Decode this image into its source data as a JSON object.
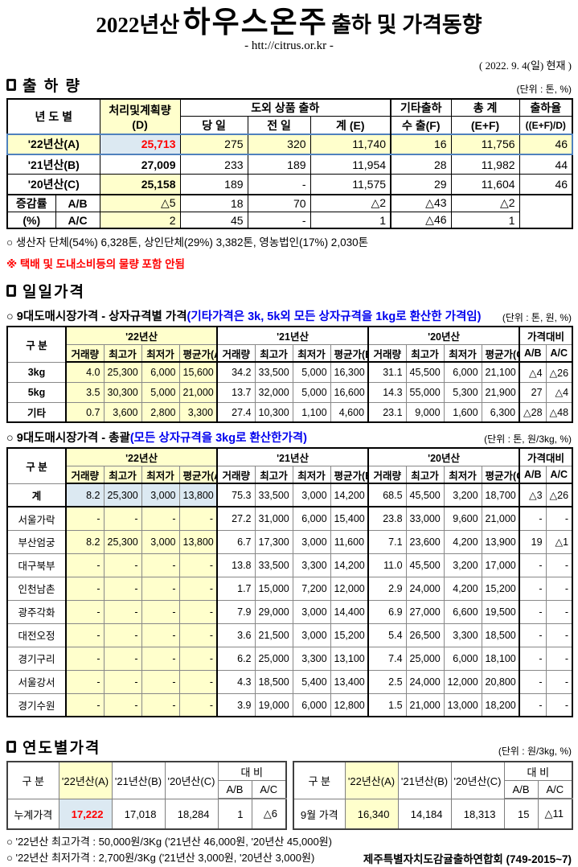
{
  "colors": {
    "yellow": "#FFFFCC",
    "light_blue": "#DCE9F2",
    "red": "#FF0000",
    "blue_text": "#0000EE",
    "row22_border": "#4F81BD"
  },
  "header": {
    "title_prefix": "2022년산",
    "title_main": "하우스온주",
    "title_suffix": "출하 및 가격동향",
    "url": "- htt://citrus.or.kr -",
    "as_of": "( 2022. 9. 4(일) 현재 )"
  },
  "shipment": {
    "title": "출 하 량",
    "unit": "(단위 : 톤, %)",
    "col_year": "년 도 별",
    "col_plan_line1": "처리및계획량",
    "col_plan_line2": "(D)",
    "col_group_shipment": "도외 상품 출하",
    "col_day": "당 일",
    "col_prev": "전 일",
    "col_total_e": "계 (E)",
    "col_etc_line1": "기타출하",
    "col_etc_line2": "수 출(F)",
    "col_sum_line1": "총  계",
    "col_sum_line2": "(E+F)",
    "col_rate_line1": "출하율",
    "col_rate_line2": "((E+F)/D)",
    "rows": [
      {
        "label": "'22년산(A)",
        "cells": [
          "25,713",
          "275",
          "320",
          "11,740",
          "16",
          "11,756",
          "46"
        ]
      },
      {
        "label": "'21년산(B)",
        "cells": [
          "27,009",
          "233",
          "189",
          "11,954",
          "28",
          "11,982",
          "44"
        ]
      },
      {
        "label": "'20년산(C)",
        "cells": [
          "25,158",
          "189",
          "-",
          "11,575",
          "29",
          "11,604",
          "46"
        ]
      }
    ],
    "change_rows": [
      {
        "group": "증감률",
        "label": "A/B",
        "cells": [
          "△5",
          "18",
          "70",
          "△2",
          "△43",
          "△2"
        ]
      },
      {
        "group": "(%)",
        "label": "A/C",
        "cells": [
          "2",
          "45",
          "-",
          "1",
          "△46",
          "1"
        ]
      }
    ],
    "note1": "생산자 단체(54%)  6,328톤,    상인단체(29%)  3,382톤,   영농법인(17%)   2,030톤",
    "note2": "※ 택배 및 도내소비등의 물량 포함 안됨"
  },
  "daily": {
    "title": "일일가격",
    "sub1_label": "9대도매시장가격 - 상자규격별 가격",
    "sub1_note": "(기타가격은 3k, 5k외 모든 상자규격을 1kg로 환산한 가격임)",
    "sub1_unit": "(단위 : 톤,  원, %)",
    "sub2_label": "9대도매시장가격 - 총괄",
    "sub2_note": "(모든 상자규격을 3kg로 환산한가격)",
    "sub2_unit": "(단위 : 톤, 원/3kg, %)",
    "headers": {
      "gubun": "구  분",
      "y22": "'22년산",
      "y21": "'21년산",
      "y20": "'20년산",
      "compare": "가격대비",
      "sub": [
        "거래량",
        "최고가",
        "최저가",
        "평균가(A)",
        "거래량",
        "최고가",
        "최저가",
        "평균가(B)",
        "거래량",
        "최고가",
        "최저가",
        "평균가(C)",
        "A/B",
        "A/C"
      ]
    },
    "by_size_rows": [
      {
        "label": "3kg",
        "cells": [
          "4.0",
          "25,300",
          "6,000",
          "15,600",
          "34.2",
          "33,500",
          "5,000",
          "16,300",
          "31.1",
          "45,500",
          "6,000",
          "21,100",
          "△4",
          "△26"
        ]
      },
      {
        "label": "5kg",
        "cells": [
          "3.5",
          "30,300",
          "5,000",
          "21,000",
          "13.7",
          "32,000",
          "5,000",
          "16,600",
          "14.3",
          "55,000",
          "5,300",
          "21,900",
          "27",
          "△4"
        ]
      },
      {
        "label": "기타",
        "cells": [
          "0.7",
          "3,600",
          "2,800",
          "3,300",
          "27.4",
          "10,300",
          "1,100",
          "4,600",
          "23.1",
          "9,000",
          "1,600",
          "6,300",
          "△28",
          "△48"
        ]
      }
    ],
    "overall_rows": [
      {
        "label": "계",
        "highlight": "blue",
        "cells": [
          "8.2",
          "25,300",
          "3,000",
          "13,800",
          "75.3",
          "33,500",
          "3,000",
          "14,200",
          "68.5",
          "45,500",
          "3,200",
          "18,700",
          "△3",
          "△26"
        ]
      },
      {
        "label": "서울가락",
        "highlight": "yellow",
        "cells": [
          "-",
          "-",
          "-",
          "-",
          "27.2",
          "31,000",
          "6,000",
          "15,400",
          "23.8",
          "33,000",
          "9,600",
          "21,000",
          "-",
          "-"
        ]
      },
      {
        "label": "부산엄궁",
        "highlight": "yellow",
        "cells": [
          "8.2",
          "25,300",
          "3,000",
          "13,800",
          "6.7",
          "17,300",
          "3,000",
          "11,600",
          "7.1",
          "23,600",
          "4,200",
          "13,900",
          "19",
          "△1"
        ]
      },
      {
        "label": "대구북부",
        "highlight": "yellow",
        "cells": [
          "-",
          "-",
          "-",
          "-",
          "13.8",
          "33,500",
          "3,300",
          "14,200",
          "11.0",
          "45,500",
          "3,200",
          "17,000",
          "-",
          "-"
        ]
      },
      {
        "label": "인천남촌",
        "highlight": "yellow",
        "cells": [
          "-",
          "-",
          "-",
          "-",
          "1.7",
          "15,000",
          "7,200",
          "12,000",
          "2.9",
          "24,000",
          "4,200",
          "15,200",
          "-",
          "-"
        ]
      },
      {
        "label": "광주각화",
        "highlight": "yellow",
        "cells": [
          "-",
          "-",
          "-",
          "-",
          "7.9",
          "29,000",
          "3,000",
          "14,400",
          "6.9",
          "27,000",
          "6,600",
          "19,500",
          "-",
          "-"
        ]
      },
      {
        "label": "대전오정",
        "highlight": "yellow",
        "cells": [
          "-",
          "-",
          "-",
          "-",
          "3.6",
          "21,500",
          "3,000",
          "15,200",
          "5.4",
          "26,500",
          "3,300",
          "18,500",
          "-",
          "-"
        ]
      },
      {
        "label": "경기구리",
        "highlight": "yellow",
        "cells": [
          "-",
          "-",
          "-",
          "-",
          "6.2",
          "25,000",
          "3,300",
          "13,100",
          "7.4",
          "25,000",
          "6,000",
          "18,100",
          "-",
          "-"
        ]
      },
      {
        "label": "서울강서",
        "highlight": "yellow",
        "cells": [
          "-",
          "-",
          "-",
          "-",
          "4.3",
          "18,500",
          "5,400",
          "13,400",
          "2.5",
          "24,000",
          "12,000",
          "20,800",
          "-",
          "-"
        ]
      },
      {
        "label": "경기수원",
        "highlight": "yellow",
        "cells": [
          "-",
          "-",
          "-",
          "-",
          "3.9",
          "19,000",
          "6,000",
          "12,800",
          "1.5",
          "21,000",
          "13,000",
          "18,200",
          "-",
          "-"
        ]
      }
    ]
  },
  "yearly": {
    "title": "연도별가격",
    "unit": "(단위 : 원/3kg, %)",
    "headers": {
      "gubun": "구  분",
      "y22": "'22년산(A)",
      "y21": "'21년산(B)",
      "y20": "'20년산(C)",
      "compare": "대  비",
      "ab": "A/B",
      "ac": "A/C"
    },
    "left_row": {
      "label": "누계가격",
      "v22": "17,222",
      "v21": "17,018",
      "v20": "18,284",
      "ab": "1",
      "ac": "△6"
    },
    "right_row": {
      "label": "9월 가격",
      "v22": "16,340",
      "v21": "14,184",
      "v20": "18,313",
      "ab": "15",
      "ac": "△11"
    },
    "note_high": "'22년산 최고가격 : 50,000원/3Kg ('21년산 46,000원, '20년산 45,000원)",
    "note_low": "'22년산 최저가격 :  2,700원/3Kg ('21년산  3,000원, '20년산  3,000원)",
    "org": "제주특별자치도감귤출하연합회 (749-2015~7)"
  }
}
